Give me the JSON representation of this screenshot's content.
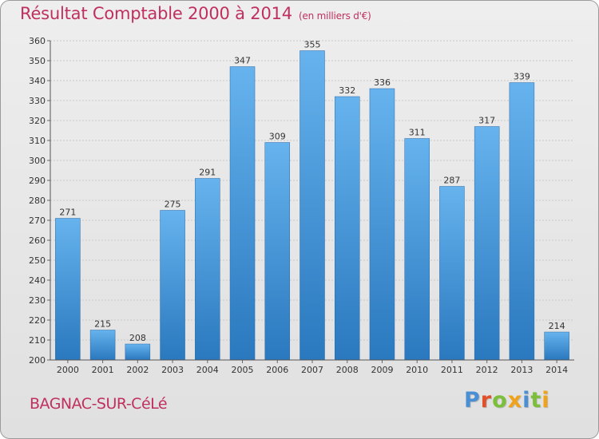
{
  "header": {
    "title": "Résultat Comptable 2000 à 2014",
    "subtitle": "(en milliers d'€)"
  },
  "footer": {
    "place": "BAGNAC-SUR-CéLé",
    "logo_letters": [
      {
        "char": "P",
        "color": "#4a8fd4"
      },
      {
        "char": "r",
        "color": "#e0502a"
      },
      {
        "char": "o",
        "color": "#7bbf3a"
      },
      {
        "char": "x",
        "color": "#f0a21a"
      },
      {
        "char": "i",
        "color": "#4a8fd4"
      },
      {
        "char": "t",
        "color": "#7bbf3a"
      },
      {
        "char": "i",
        "color": "#f0a21a"
      }
    ]
  },
  "chart_data": {
    "type": "bar",
    "title": "Résultat Comptable 2000 à 2014",
    "xlabel": "",
    "ylabel": "",
    "categories": [
      "2000",
      "2001",
      "2002",
      "2003",
      "2004",
      "2005",
      "2006",
      "2007",
      "2008",
      "2009",
      "2010",
      "2011",
      "2012",
      "2013",
      "2014"
    ],
    "values": [
      271,
      215,
      208,
      275,
      291,
      347,
      309,
      355,
      332,
      336,
      311,
      287,
      317,
      339,
      214
    ],
    "ylim": [
      200,
      360
    ],
    "ytick_step": 10,
    "grid": true,
    "bar_color_top": "#66b3ee",
    "bar_color_bottom": "#2a78be"
  }
}
